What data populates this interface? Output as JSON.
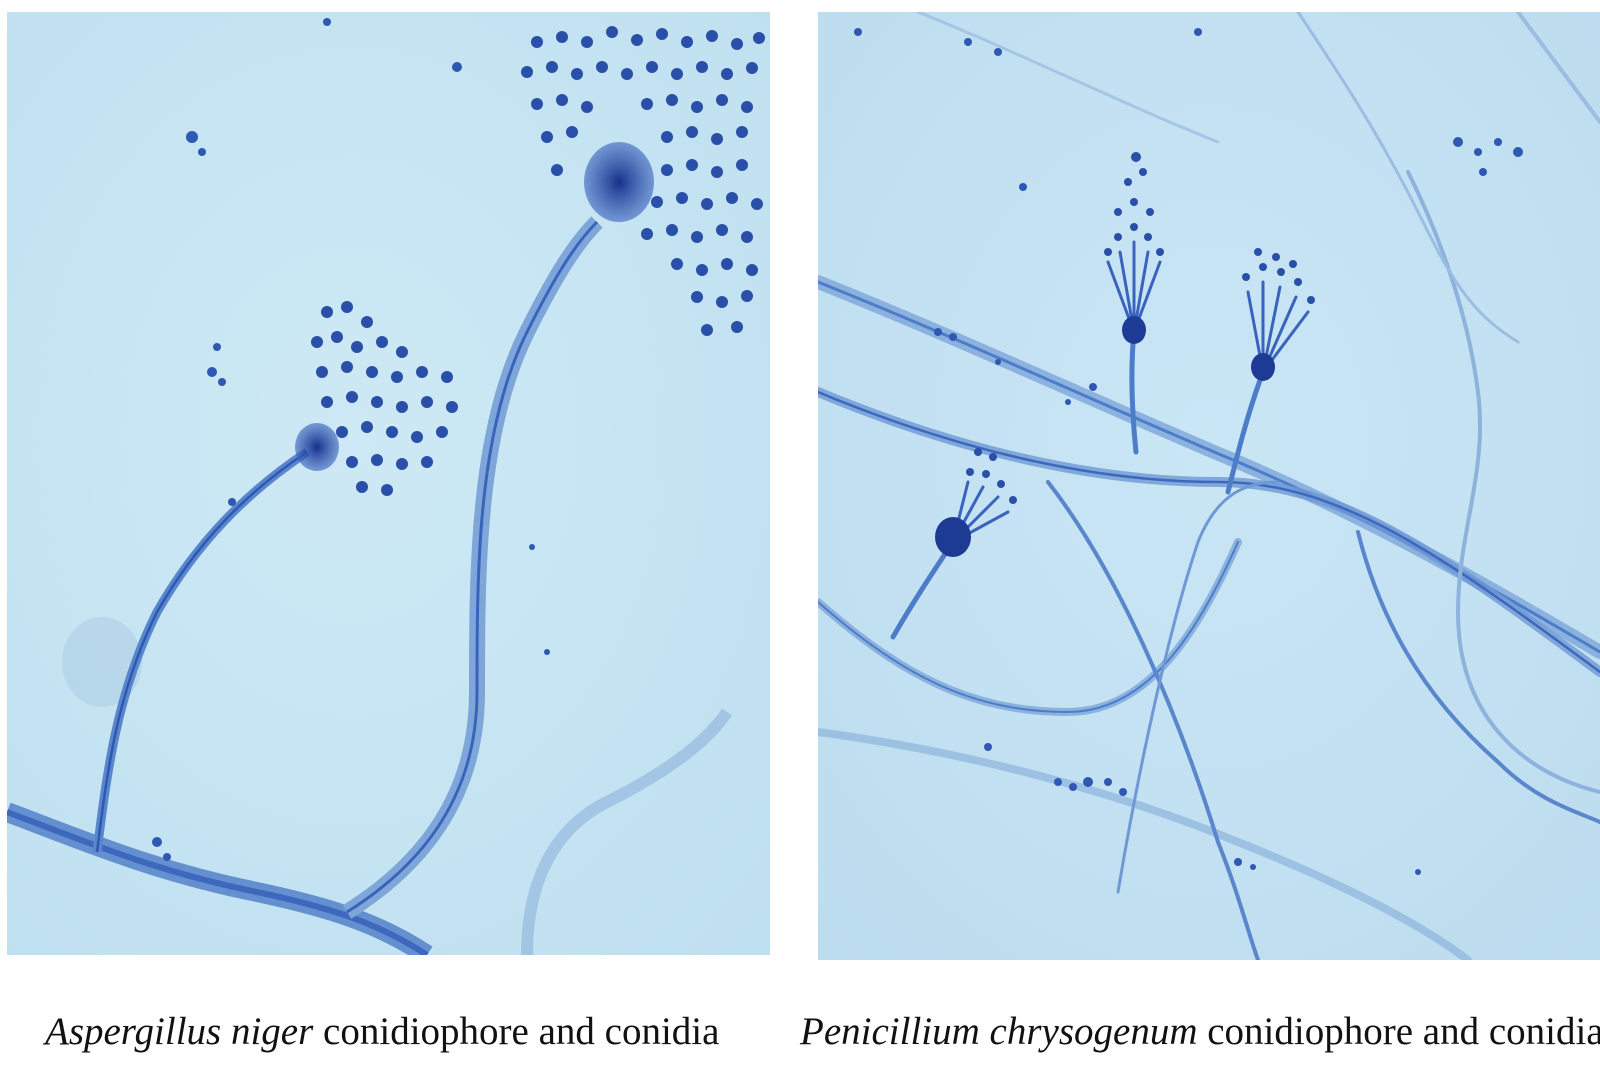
{
  "figure": {
    "panels": [
      {
        "species": "Aspergillus niger",
        "description": "conidiophore and conidia"
      },
      {
        "species": "Penicillium chrysogenum",
        "description": "conidiophore and conidia"
      }
    ],
    "colors": {
      "background_left": "#c5e6f3",
      "background_right": "#c2e3f3",
      "hyphae": "#4d7dc8",
      "hyphae_dark": "#2f58b3",
      "conidia": "#2a4fa8",
      "vesicle": "#1d3b95"
    }
  }
}
